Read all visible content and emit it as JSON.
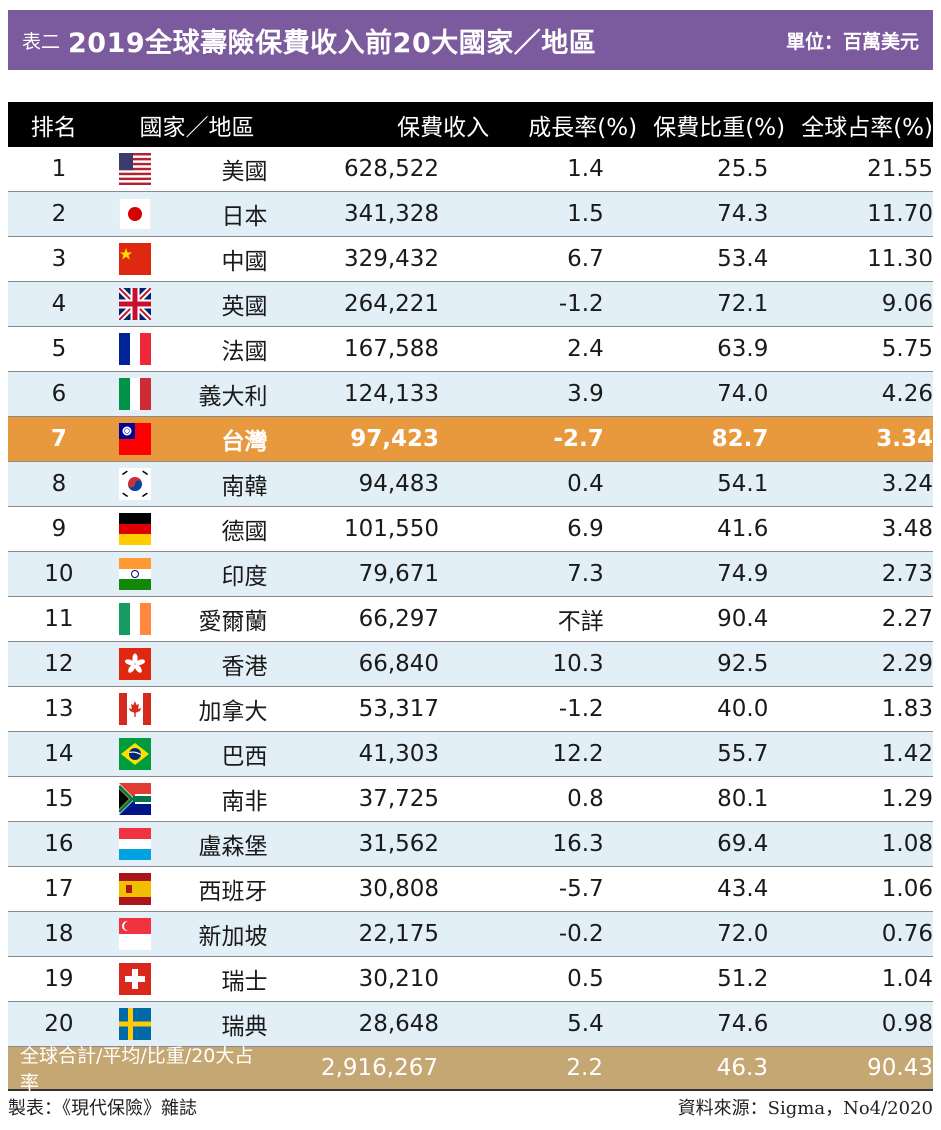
{
  "title": {
    "prefix": "表二",
    "main": "2019全球壽險保費收入前20大國家／地區",
    "unit": "單位：百萬美元"
  },
  "headers": {
    "rank": "排名",
    "country": "國家／地區",
    "premium": "保費收入",
    "growth": "成長率(%)",
    "share": "保費比重(%)",
    "global": "全球占率(%)"
  },
  "rows": [
    {
      "rank": "1",
      "flag": "us-flag-icon",
      "country": "美國",
      "premium": "628,522",
      "growth": "1.4",
      "share": "25.5",
      "global": "21.55"
    },
    {
      "rank": "2",
      "flag": "jp-flag-icon",
      "country": "日本",
      "premium": "341,328",
      "growth": "1.5",
      "share": "74.3",
      "global": "11.70"
    },
    {
      "rank": "3",
      "flag": "cn-flag-icon",
      "country": "中國",
      "premium": "329,432",
      "growth": "6.7",
      "share": "53.4",
      "global": "11.30"
    },
    {
      "rank": "4",
      "flag": "gb-flag-icon",
      "country": "英國",
      "premium": "264,221",
      "growth": "-1.2",
      "share": "72.1",
      "global": "9.06"
    },
    {
      "rank": "5",
      "flag": "fr-flag-icon",
      "country": "法國",
      "premium": "167,588",
      "growth": "2.4",
      "share": "63.9",
      "global": "5.75"
    },
    {
      "rank": "6",
      "flag": "it-flag-icon",
      "country": "義大利",
      "premium": "124,133",
      "growth": "3.9",
      "share": "74.0",
      "global": "4.26"
    },
    {
      "rank": "7",
      "flag": "tw-flag-icon",
      "country": "台灣",
      "premium": "97,423",
      "growth": "-2.7",
      "share": "82.7",
      "global": "3.34"
    },
    {
      "rank": "8",
      "flag": "kr-flag-icon",
      "country": "南韓",
      "premium": "94,483",
      "growth": "0.4",
      "share": "54.1",
      "global": "3.24"
    },
    {
      "rank": "9",
      "flag": "de-flag-icon",
      "country": "德國",
      "premium": "101,550",
      "growth": "6.9",
      "share": "41.6",
      "global": "3.48"
    },
    {
      "rank": "10",
      "flag": "in-flag-icon",
      "country": "印度",
      "premium": "79,671",
      "growth": "7.3",
      "share": "74.9",
      "global": "2.73"
    },
    {
      "rank": "11",
      "flag": "ie-flag-icon",
      "country": "愛爾蘭",
      "premium": "66,297",
      "growth": "不詳",
      "share": "90.4",
      "global": "2.27"
    },
    {
      "rank": "12",
      "flag": "hk-flag-icon",
      "country": "香港",
      "premium": "66,840",
      "growth": "10.3",
      "share": "92.5",
      "global": "2.29"
    },
    {
      "rank": "13",
      "flag": "ca-flag-icon",
      "country": "加拿大",
      "premium": "53,317",
      "growth": "-1.2",
      "share": "40.0",
      "global": "1.83"
    },
    {
      "rank": "14",
      "flag": "br-flag-icon",
      "country": "巴西",
      "premium": "41,303",
      "growth": "12.2",
      "share": "55.7",
      "global": "1.42"
    },
    {
      "rank": "15",
      "flag": "za-flag-icon",
      "country": "南非",
      "premium": "37,725",
      "growth": "0.8",
      "share": "80.1",
      "global": "1.29"
    },
    {
      "rank": "16",
      "flag": "lu-flag-icon",
      "country": "盧森堡",
      "premium": "31,562",
      "growth": "16.3",
      "share": "69.4",
      "global": "1.08"
    },
    {
      "rank": "17",
      "flag": "es-flag-icon",
      "country": "西班牙",
      "premium": "30,808",
      "growth": "-5.7",
      "share": "43.4",
      "global": "1.06"
    },
    {
      "rank": "18",
      "flag": "sg-flag-icon",
      "country": "新加坡",
      "premium": "22,175",
      "growth": "-0.2",
      "share": "72.0",
      "global": "0.76"
    },
    {
      "rank": "19",
      "flag": "ch-flag-icon",
      "country": "瑞士",
      "premium": "30,210",
      "growth": "0.5",
      "share": "51.2",
      "global": "1.04"
    },
    {
      "rank": "20",
      "flag": "se-flag-icon",
      "country": "瑞典",
      "premium": "28,648",
      "growth": "5.4",
      "share": "74.6",
      "global": "0.98"
    }
  ],
  "total": {
    "label": "全球合計/平均/比重/20大占率",
    "premium": "2,916,267",
    "growth": "2.2",
    "share": "46.3",
    "global": "90.43"
  },
  "footer": {
    "left": "製表：《現代保險》雜誌",
    "right": "資料來源：Sigma，No4/2020"
  },
  "colors": {
    "title_bg": "#7b5a9e",
    "header_bg": "#000000",
    "alt_row_bg": "#e2eff6",
    "highlight_bg": "#e8983d",
    "total_bg": "#c5a774"
  }
}
